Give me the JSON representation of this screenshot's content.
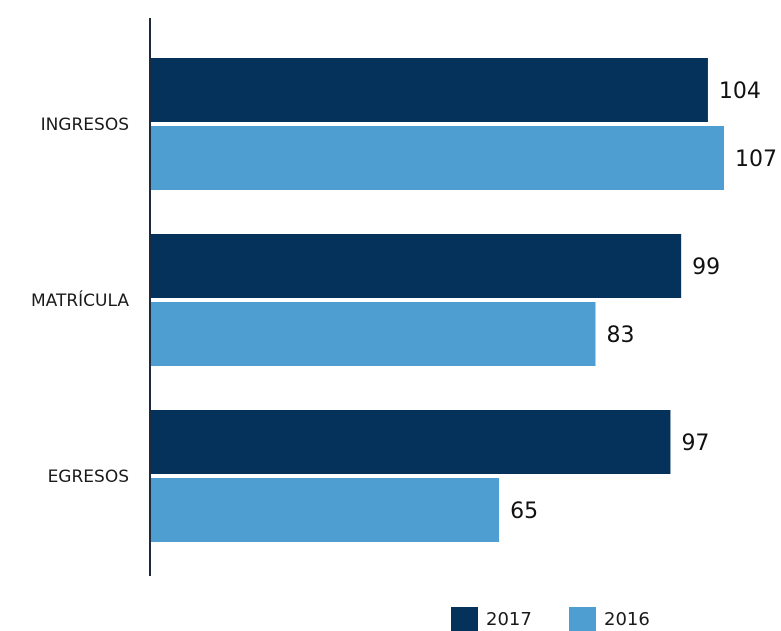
{
  "chart_data": {
    "type": "bar",
    "orientation": "horizontal",
    "categories": [
      "INGRESOS",
      "MATRÍCULA",
      "EGRESOS"
    ],
    "series": [
      {
        "name": "2017",
        "values": [
          104,
          99,
          97
        ],
        "color": "#04325a"
      },
      {
        "name": "2016",
        "values": [
          107,
          83,
          65
        ],
        "color": "#4f9ed2"
      }
    ],
    "title": "",
    "xlabel": "",
    "ylabel": "",
    "xlim": [
      0,
      107
    ],
    "grid": false,
    "legend": "bottom-right"
  }
}
